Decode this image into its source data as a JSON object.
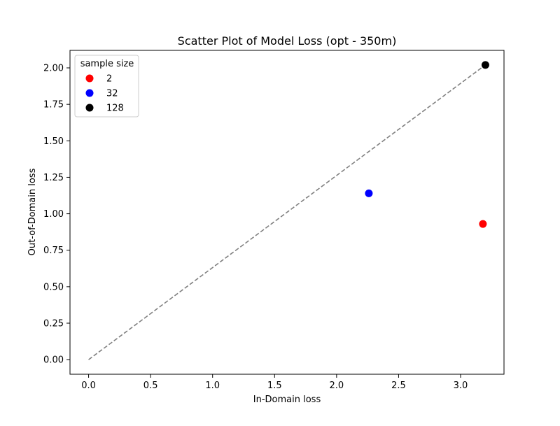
{
  "chart_data": {
    "type": "scatter",
    "title": "Scatter Plot of Model Loss (opt - 350m)",
    "xlabel": "In-Domain loss",
    "ylabel": "Out-of-Domain loss",
    "xlim": [
      -0.15,
      3.35
    ],
    "ylim": [
      -0.1,
      2.12
    ],
    "x_ticks": [
      0.0,
      0.5,
      1.0,
      1.5,
      2.0,
      2.5,
      3.0
    ],
    "x_tick_labels": [
      "0.0",
      "0.5",
      "1.0",
      "1.5",
      "2.0",
      "2.5",
      "3.0"
    ],
    "y_ticks": [
      0.0,
      0.25,
      0.5,
      0.75,
      1.0,
      1.25,
      1.5,
      1.75,
      2.0
    ],
    "y_tick_labels": [
      "0.00",
      "0.25",
      "0.50",
      "0.75",
      "1.00",
      "1.25",
      "1.50",
      "1.75",
      "2.00"
    ],
    "grid": false,
    "legend": {
      "title": "sample size",
      "placement": "top-left"
    },
    "series": [
      {
        "name": "2",
        "color": "#ff0000",
        "points": [
          {
            "x": 3.18,
            "y": 0.93
          }
        ]
      },
      {
        "name": "32",
        "color": "#0000ff",
        "points": [
          {
            "x": 2.26,
            "y": 1.14
          }
        ]
      },
      {
        "name": "128",
        "color": "#000000",
        "points": [
          {
            "x": 3.2,
            "y": 2.02
          }
        ]
      }
    ],
    "reference_line": {
      "style": "dashed",
      "color": "#808080",
      "from": {
        "x": 0.0,
        "y": 0.0
      },
      "to": {
        "x": 3.2,
        "y": 2.02
      }
    }
  }
}
